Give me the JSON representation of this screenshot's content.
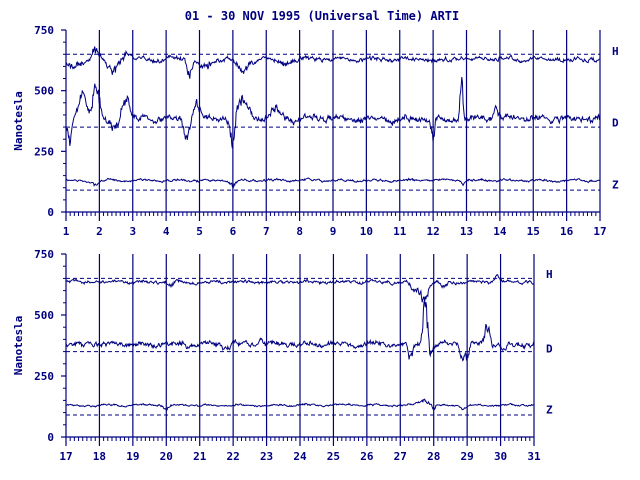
{
  "title": "01 - 30 NOV 1995 (Universal Time) ARTI",
  "chart_data": [
    {
      "type": "line",
      "ylabel": "Nanotesla",
      "ylim": [
        0,
        750
      ],
      "yticks": [
        0,
        250,
        500,
        750
      ],
      "xlim": [
        1,
        17
      ],
      "xticks": [
        "1",
        "2",
        "3",
        "4",
        "5",
        "6",
        "7",
        "8",
        "9",
        "10",
        "11",
        "12",
        "13",
        "14",
        "15",
        "16",
        "17"
      ],
      "series": [
        {
          "name": "H",
          "baseline": 650,
          "level": 630,
          "amp": 10,
          "events": [
            [
              1.2,
              0.45,
              -40
            ],
            [
              1.9,
              0.25,
              50
            ],
            [
              2.4,
              0.35,
              -50
            ],
            [
              2.8,
              0.3,
              30
            ],
            [
              4.7,
              0.12,
              -70
            ],
            [
              5.2,
              0.3,
              -40
            ],
            [
              6.3,
              0.3,
              -55
            ],
            [
              7.5,
              0.4,
              -20
            ]
          ]
        },
        {
          "name": "D",
          "baseline": 350,
          "level": 385,
          "amp": 15,
          "events": [
            [
              1.1,
              0.15,
              -110
            ],
            [
              1.5,
              0.25,
              90
            ],
            [
              1.9,
              0.2,
              150
            ],
            [
              2.4,
              0.3,
              -40
            ],
            [
              2.8,
              0.2,
              120
            ],
            [
              4.6,
              0.15,
              -90
            ],
            [
              4.9,
              0.2,
              80
            ],
            [
              6.0,
              0.12,
              -130
            ],
            [
              6.3,
              0.35,
              70
            ],
            [
              7.3,
              0.3,
              50
            ],
            [
              12.0,
              0.1,
              -80
            ],
            [
              12.85,
              0.08,
              190
            ],
            [
              13.9,
              0.12,
              50
            ]
          ]
        },
        {
          "name": "Z",
          "baseline": 90,
          "level": 130,
          "amp": 5,
          "events": [
            [
              1.9,
              0.2,
              -20
            ],
            [
              6.0,
              0.15,
              -25
            ],
            [
              12.9,
              0.1,
              -15
            ]
          ]
        }
      ]
    },
    {
      "type": "line",
      "ylabel": "Nanotesla",
      "ylim": [
        0,
        750
      ],
      "yticks": [
        0,
        250,
        500,
        750
      ],
      "xlim": [
        17,
        31
      ],
      "xticks": [
        "17",
        "18",
        "19",
        "20",
        "21",
        "22",
        "23",
        "24",
        "25",
        "26",
        "27",
        "28",
        "29",
        "30",
        "31"
      ],
      "series": [
        {
          "name": "H",
          "baseline": 650,
          "level": 635,
          "amp": 7,
          "events": [
            [
              20.1,
              0.2,
              -15
            ],
            [
              27.4,
              0.15,
              -40
            ],
            [
              27.7,
              0.25,
              -80
            ],
            [
              28.3,
              0.2,
              -30
            ],
            [
              29.9,
              0.15,
              25
            ]
          ]
        },
        {
          "name": "D",
          "baseline": 350,
          "level": 380,
          "amp": 12,
          "events": [
            [
              22.8,
              0.15,
              40
            ],
            [
              27.3,
              0.12,
              -70
            ],
            [
              27.75,
              0.15,
              180
            ],
            [
              27.9,
              0.12,
              -60
            ],
            [
              28.85,
              0.12,
              -60
            ],
            [
              29.0,
              0.1,
              -60
            ],
            [
              29.6,
              0.15,
              80
            ],
            [
              30.1,
              0.1,
              -40
            ]
          ]
        },
        {
          "name": "Z",
          "baseline": 90,
          "level": 130,
          "amp": 4,
          "events": [
            [
              20.0,
              0.15,
              -15
            ],
            [
              27.7,
              0.3,
              25
            ],
            [
              28.0,
              0.1,
              -20
            ],
            [
              28.9,
              0.15,
              -15
            ]
          ]
        }
      ]
    }
  ]
}
